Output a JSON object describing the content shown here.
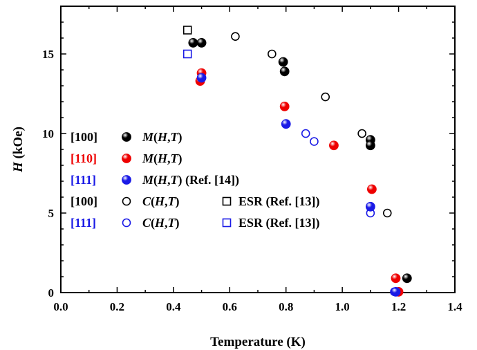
{
  "chart_data": {
    "type": "scatter",
    "xlabel": "Temperature (K)",
    "ylabel": "H (kOe)",
    "xlim": [
      0.0,
      1.4
    ],
    "ylim": [
      0,
      18
    ],
    "x_ticks": [
      "0.0",
      "0.2",
      "0.4",
      "0.6",
      "0.8",
      "1.0",
      "1.2",
      "1.4"
    ],
    "y_ticks": [
      "0",
      "5",
      "10",
      "15"
    ],
    "grid": false,
    "legend_position": "left-middle",
    "series": [
      {
        "direction": "[100]",
        "method": "M(H,T)",
        "ref": "",
        "direction_color": "#000000",
        "color": "#000000",
        "marker": "filled-circle",
        "points": [
          [
            0.47,
            15.7
          ],
          [
            0.5,
            15.7
          ],
          [
            0.79,
            14.5
          ],
          [
            0.795,
            13.9
          ],
          [
            1.1,
            9.6
          ],
          [
            1.1,
            9.25
          ],
          [
            1.23,
            0.9
          ]
        ]
      },
      {
        "direction": "[110]",
        "method": "M(H,T)",
        "ref": "",
        "direction_color": "#ee0000",
        "color": "#ee0000",
        "marker": "filled-circle",
        "points": [
          [
            0.495,
            13.3
          ],
          [
            0.5,
            13.8
          ],
          [
            0.795,
            11.7
          ],
          [
            0.97,
            9.25
          ],
          [
            1.105,
            6.5
          ],
          [
            1.19,
            0.9
          ],
          [
            1.2,
            0.05
          ]
        ]
      },
      {
        "direction": "[111]",
        "method": "M(H,T)",
        "ref": "(Ref. [14])",
        "direction_color": "#1a1ae6",
        "color": "#1a1ae6",
        "marker": "filled-circle",
        "points": [
          [
            0.5,
            13.5
          ],
          [
            0.8,
            10.6
          ],
          [
            1.1,
            5.4
          ],
          [
            1.19,
            0.05
          ]
        ]
      },
      {
        "direction": "[100]",
        "method": "C(H,T)",
        "ref": "",
        "direction_color": "#000000",
        "color": "#000000",
        "marker": "open-circle",
        "points": [
          [
            0.62,
            16.1
          ],
          [
            0.75,
            15.0
          ],
          [
            0.94,
            12.3
          ],
          [
            1.07,
            10.0
          ],
          [
            1.16,
            5.0
          ]
        ]
      },
      {
        "direction": "[111]",
        "method": "C(H,T)",
        "ref": "",
        "direction_color": "#1a1ae6",
        "color": "#1a1ae6",
        "marker": "open-circle",
        "points": [
          [
            0.87,
            10.0
          ],
          [
            0.9,
            9.5
          ],
          [
            1.1,
            5.0
          ],
          [
            1.185,
            0.05
          ]
        ]
      },
      {
        "direction": "",
        "method": "ESR (Ref. [13])",
        "ref": "",
        "color": "#000000",
        "marker": "open-square",
        "points": [
          [
            0.45,
            16.5
          ]
        ]
      },
      {
        "direction": "",
        "method": "ESR (Ref. [13])",
        "ref": "",
        "color": "#1a1ae6",
        "marker": "open-square",
        "points": [
          [
            0.45,
            15.0
          ]
        ]
      }
    ]
  }
}
